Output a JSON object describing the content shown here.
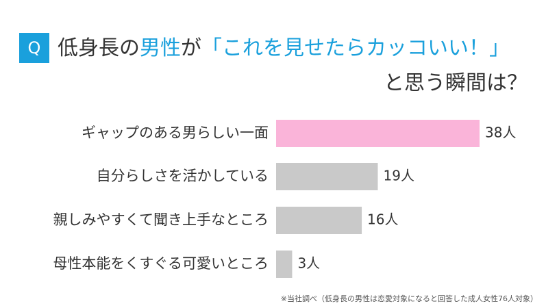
{
  "chart_data": {
    "type": "bar",
    "orientation": "horizontal",
    "badge": "Q",
    "title": [
      [
        {
          "text": "低身長の",
          "color": "#333333"
        },
        {
          "text": "男性",
          "color": "#1aa0dc"
        },
        {
          "text": "が",
          "color": "#333333"
        },
        {
          "text": "「これを見せたらカッコいい！」",
          "color": "#1aa0dc"
        }
      ],
      [
        {
          "text": "と思う瞬間は？",
          "color": "#333333"
        }
      ]
    ],
    "categories": [
      "ギャップのある男らしい一面",
      "自分らしさを活かしている",
      "親しみやすくて聞き上手なところ",
      "母性本能をくすぐる可愛いところ"
    ],
    "values": [
      38,
      19,
      16,
      3
    ],
    "value_labels": [
      "38人",
      "19人",
      "16人",
      "3人"
    ],
    "colors": [
      "#fab4d9",
      "#c9c9c9",
      "#c9c9c9",
      "#c9c9c9"
    ],
    "note": "※当社調べ（低身長の男性は恋愛対象になると回答した成人女性76人対象）"
  }
}
